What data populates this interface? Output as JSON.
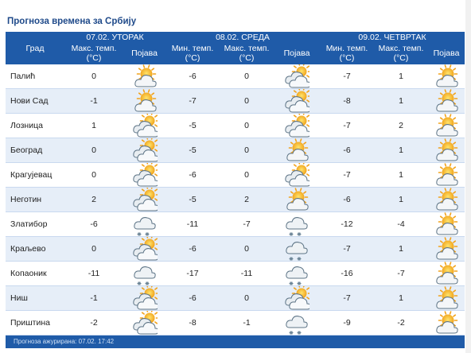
{
  "title": "Прогноза времена за Србију",
  "headers": {
    "city": "Град",
    "days": [
      {
        "label": "07.02. УТОРАК",
        "cols": [
          "Макс. темп. (°C)",
          "Појава"
        ]
      },
      {
        "label": "08.02. СРЕДА",
        "cols": [
          "Мин. темп. (°C)",
          "Макс. темп. (°C)",
          "Појава"
        ]
      },
      {
        "label": "09.02. ЧЕТВРТАК",
        "cols": [
          "Мин. темп. (°C)",
          "Макс. темп. (°C)",
          "Појава"
        ]
      }
    ]
  },
  "rows": [
    {
      "city": "Палић",
      "d1_max": "0",
      "d1_icon": "sun-cloud",
      "d2_min": "-6",
      "d2_max": "0",
      "d2_icon": "cloud-sun",
      "d3_min": "-7",
      "d3_max": "1",
      "d3_icon": "sun-cloud"
    },
    {
      "city": "Нови Сад",
      "d1_max": "-1",
      "d1_icon": "sun-cloud",
      "d2_min": "-7",
      "d2_max": "0",
      "d2_icon": "cloud-sun",
      "d3_min": "-8",
      "d3_max": "1",
      "d3_icon": "sun-cloud"
    },
    {
      "city": "Лозница",
      "d1_max": "1",
      "d1_icon": "cloud-sun",
      "d2_min": "-5",
      "d2_max": "0",
      "d2_icon": "cloud-sun",
      "d3_min": "-7",
      "d3_max": "2",
      "d3_icon": "sun-cloud"
    },
    {
      "city": "Београд",
      "d1_max": "0",
      "d1_icon": "cloud-sun",
      "d2_min": "-5",
      "d2_max": "0",
      "d2_icon": "sun-cloud",
      "d3_min": "-6",
      "d3_max": "1",
      "d3_icon": "sun-cloud"
    },
    {
      "city": "Крагујевац",
      "d1_max": "0",
      "d1_icon": "cloud-sun",
      "d2_min": "-6",
      "d2_max": "0",
      "d2_icon": "cloud-sun",
      "d3_min": "-7",
      "d3_max": "1",
      "d3_icon": "sun-cloud"
    },
    {
      "city": "Неготин",
      "d1_max": "2",
      "d1_icon": "cloud-sun",
      "d2_min": "-5",
      "d2_max": "2",
      "d2_icon": "sun-cloud",
      "d3_min": "-6",
      "d3_max": "1",
      "d3_icon": "sun-cloud"
    },
    {
      "city": "Златибор",
      "d1_max": "-6",
      "d1_icon": "cloud-snow",
      "d2_min": "-11",
      "d2_max": "-7",
      "d2_icon": "cloud-snow",
      "d3_min": "-12",
      "d3_max": "-4",
      "d3_icon": "sun-cloud"
    },
    {
      "city": "Краљево",
      "d1_max": "0",
      "d1_icon": "cloud-sun",
      "d2_min": "-6",
      "d2_max": "0",
      "d2_icon": "cloud-snow",
      "d3_min": "-7",
      "d3_max": "1",
      "d3_icon": "sun-cloud"
    },
    {
      "city": "Копаоник",
      "d1_max": "-11",
      "d1_icon": "cloud-snow",
      "d2_min": "-17",
      "d2_max": "-11",
      "d2_icon": "cloud-snow",
      "d3_min": "-16",
      "d3_max": "-7",
      "d3_icon": "sun-cloud"
    },
    {
      "city": "Ниш",
      "d1_max": "-1",
      "d1_icon": "cloud-sun",
      "d2_min": "-6",
      "d2_max": "0",
      "d2_icon": "cloud-sun",
      "d3_min": "-7",
      "d3_max": "1",
      "d3_icon": "sun-cloud"
    },
    {
      "city": "Приштина",
      "d1_max": "-2",
      "d1_icon": "cloud-sun",
      "d2_min": "-8",
      "d2_max": "-1",
      "d2_icon": "cloud-snow",
      "d3_min": "-9",
      "d3_max": "-2",
      "d3_icon": "sun-cloud"
    }
  ],
  "footer": "Прогноза ажурирана: 07.02. 17:42",
  "colors": {
    "header_bg": "#1f5ba8",
    "stripe": "#e6eef8",
    "title": "#1f4a8a"
  }
}
